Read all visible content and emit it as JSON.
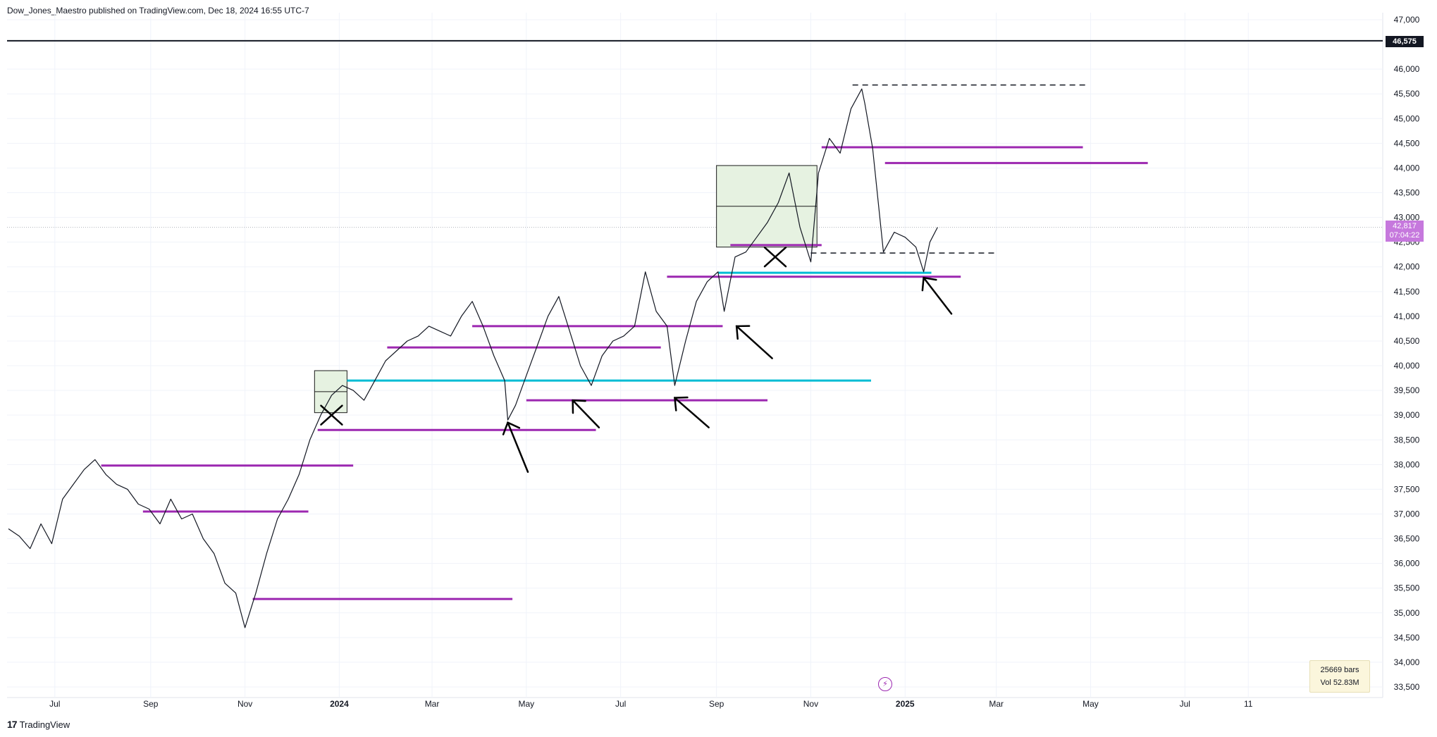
{
  "header": {
    "published_text": "Dow_Jones_Maestro published on TradingView.com, Dec 18, 2024 16:55 UTC-7"
  },
  "footer": {
    "brand": "TradingView",
    "logo_glyph": "17"
  },
  "info_box": {
    "bars": "25669 bars",
    "volume": "Vol 52.83M"
  },
  "price_tags": {
    "current_price": "42,817",
    "countdown": "07:04:22",
    "level_price": "46,575"
  },
  "colors": {
    "price_line": "#131722",
    "support_purple": "#9c27b0",
    "support_cyan": "#00bcd4",
    "zone_fill": "#e6f2e1",
    "current_tag": "#c678dd",
    "annotation": "#000000"
  },
  "chart_data": {
    "type": "line",
    "title": "",
    "xlabel": "",
    "ylabel": "",
    "ylim": [
      33500,
      47000
    ],
    "grid": true,
    "y_ticks": [
      33500,
      34000,
      34500,
      35000,
      35500,
      36000,
      36500,
      37000,
      37500,
      38000,
      38500,
      39000,
      39500,
      40000,
      40500,
      41000,
      41500,
      42000,
      42500,
      43000,
      43500,
      44000,
      44500,
      45000,
      45500,
      46000,
      47000
    ],
    "y_tick_labels": [
      "33,500",
      "34,000",
      "34,500",
      "35,000",
      "35,500",
      "36,000",
      "36,500",
      "37,000",
      "37,500",
      "38,000",
      "38,500",
      "39,000",
      "39,500",
      "40,000",
      "40,500",
      "41,000",
      "41,500",
      "42,000",
      "42,500",
      "43,000",
      "43,500",
      "44,000",
      "44,500",
      "45,000",
      "45,500",
      "46,000",
      "47,000"
    ],
    "x_ticks": [
      {
        "label": "Jul",
        "date": "2023-07-01",
        "bold": false
      },
      {
        "label": "Sep",
        "date": "2023-09-01",
        "bold": false
      },
      {
        "label": "Nov",
        "date": "2023-11-01",
        "bold": false
      },
      {
        "label": "2024",
        "date": "2024-01-01",
        "bold": true
      },
      {
        "label": "Mar",
        "date": "2024-03-01",
        "bold": false
      },
      {
        "label": "May",
        "date": "2024-05-01",
        "bold": false
      },
      {
        "label": "Jul",
        "date": "2024-07-01",
        "bold": false
      },
      {
        "label": "Sep",
        "date": "2024-09-01",
        "bold": false
      },
      {
        "label": "Nov",
        "date": "2024-11-01",
        "bold": false
      },
      {
        "label": "2025",
        "date": "2025-01-01",
        "bold": true
      },
      {
        "label": "Mar",
        "date": "2025-03-01",
        "bold": false
      },
      {
        "label": "May",
        "date": "2025-05-01",
        "bold": false
      },
      {
        "label": "Jul",
        "date": "2025-07-01",
        "bold": false
      },
      {
        "label": "11",
        "date": "2025-08-11",
        "bold": false
      }
    ],
    "series": [
      {
        "values": [
          [
            "2023-06-01",
            36700
          ],
          [
            "2023-06-08",
            36550
          ],
          [
            "2023-06-15",
            36300
          ],
          [
            "2023-06-22",
            36800
          ],
          [
            "2023-06-29",
            36400
          ],
          [
            "2023-07-06",
            37300
          ],
          [
            "2023-07-13",
            37600
          ],
          [
            "2023-07-20",
            37900
          ],
          [
            "2023-07-27",
            38100
          ],
          [
            "2023-08-03",
            37800
          ],
          [
            "2023-08-10",
            37600
          ],
          [
            "2023-08-17",
            37500
          ],
          [
            "2023-08-24",
            37200
          ],
          [
            "2023-08-31",
            37100
          ],
          [
            "2023-09-07",
            36800
          ],
          [
            "2023-09-14",
            37300
          ],
          [
            "2023-09-21",
            36900
          ],
          [
            "2023-09-28",
            37000
          ],
          [
            "2023-10-05",
            36500
          ],
          [
            "2023-10-12",
            36200
          ],
          [
            "2023-10-19",
            35600
          ],
          [
            "2023-10-26",
            35400
          ],
          [
            "2023-11-01",
            34700
          ],
          [
            "2023-11-08",
            35400
          ],
          [
            "2023-11-15",
            36200
          ],
          [
            "2023-11-22",
            36900
          ],
          [
            "2023-11-29",
            37300
          ],
          [
            "2023-12-06",
            37800
          ],
          [
            "2023-12-13",
            38500
          ],
          [
            "2023-12-20",
            39000
          ],
          [
            "2023-12-27",
            39400
          ],
          [
            "2024-01-03",
            39600
          ],
          [
            "2024-01-10",
            39500
          ],
          [
            "2024-01-17",
            39300
          ],
          [
            "2024-01-24",
            39700
          ],
          [
            "2024-01-31",
            40100
          ],
          [
            "2024-02-07",
            40300
          ],
          [
            "2024-02-14",
            40500
          ],
          [
            "2024-02-21",
            40600
          ],
          [
            "2024-02-28",
            40800
          ],
          [
            "2024-03-06",
            40700
          ],
          [
            "2024-03-13",
            40600
          ],
          [
            "2024-03-20",
            41000
          ],
          [
            "2024-03-27",
            41300
          ],
          [
            "2024-04-03",
            40800
          ],
          [
            "2024-04-10",
            40200
          ],
          [
            "2024-04-17",
            39700
          ],
          [
            "2024-04-19",
            38900
          ],
          [
            "2024-04-24",
            39200
          ],
          [
            "2024-05-01",
            39800
          ],
          [
            "2024-05-08",
            40400
          ],
          [
            "2024-05-15",
            41000
          ],
          [
            "2024-05-22",
            41400
          ],
          [
            "2024-05-29",
            40700
          ],
          [
            "2024-06-05",
            40000
          ],
          [
            "2024-06-12",
            39600
          ],
          [
            "2024-06-19",
            40200
          ],
          [
            "2024-06-26",
            40500
          ],
          [
            "2024-07-03",
            40600
          ],
          [
            "2024-07-10",
            40800
          ],
          [
            "2024-07-17",
            41900
          ],
          [
            "2024-07-24",
            41100
          ],
          [
            "2024-07-31",
            40800
          ],
          [
            "2024-08-05",
            39600
          ],
          [
            "2024-08-12",
            40500
          ],
          [
            "2024-08-19",
            41300
          ],
          [
            "2024-08-26",
            41700
          ],
          [
            "2024-09-02",
            41900
          ],
          [
            "2024-09-06",
            41100
          ],
          [
            "2024-09-13",
            42200
          ],
          [
            "2024-09-20",
            42300
          ],
          [
            "2024-09-27",
            42600
          ],
          [
            "2024-10-04",
            42900
          ],
          [
            "2024-10-11",
            43300
          ],
          [
            "2024-10-18",
            43900
          ],
          [
            "2024-10-25",
            42800
          ],
          [
            "2024-11-01",
            42100
          ],
          [
            "2024-11-06",
            43900
          ],
          [
            "2024-11-13",
            44600
          ],
          [
            "2024-11-20",
            44300
          ],
          [
            "2024-11-27",
            45200
          ],
          [
            "2024-12-04",
            45600
          ],
          [
            "2024-12-06",
            45300
          ],
          [
            "2024-12-11",
            44400
          ],
          [
            "2024-12-18",
            42300
          ],
          [
            "2024-12-25",
            42700
          ],
          [
            "2025-01-01",
            42600
          ],
          [
            "2025-01-08",
            42400
          ],
          [
            "2025-01-13",
            41900
          ],
          [
            "2025-01-17",
            42500
          ],
          [
            "2025-01-22",
            42800
          ]
        ]
      }
    ],
    "horizontal_levels": [
      {
        "price": 46575,
        "start": "2023-06-01",
        "end": "2025-10-01",
        "style": "solid",
        "color": "black"
      },
      {
        "price": 45680,
        "start": "2024-11-28",
        "end": "2025-04-30",
        "style": "dashed",
        "color": "black"
      },
      {
        "price": 44420,
        "start": "2024-11-08",
        "end": "2025-04-26",
        "style": "solid",
        "color": "purple"
      },
      {
        "price": 44100,
        "start": "2024-12-19",
        "end": "2025-06-07",
        "style": "solid",
        "color": "purple"
      },
      {
        "price": 42440,
        "start": "2024-09-10",
        "end": "2024-11-08",
        "style": "solid",
        "color": "purple"
      },
      {
        "price": 42280,
        "start": "2024-11-01",
        "end": "2025-03-01",
        "style": "dashed",
        "color": "black"
      },
      {
        "price": 41880,
        "start": "2024-09-02",
        "end": "2025-01-18",
        "style": "solid",
        "color": "cyan"
      },
      {
        "price": 41800,
        "start": "2024-07-31",
        "end": "2025-02-06",
        "style": "solid",
        "color": "purple"
      },
      {
        "price": 40800,
        "start": "2024-03-27",
        "end": "2024-09-05",
        "style": "solid",
        "color": "purple"
      },
      {
        "price": 40370,
        "start": "2024-02-01",
        "end": "2024-07-27",
        "style": "solid",
        "color": "purple"
      },
      {
        "price": 39700,
        "start": "2024-01-06",
        "end": "2024-12-10",
        "style": "solid",
        "color": "cyan"
      },
      {
        "price": 39300,
        "start": "2024-05-01",
        "end": "2024-10-04",
        "style": "solid",
        "color": "purple"
      },
      {
        "price": 38700,
        "start": "2023-12-18",
        "end": "2024-06-15",
        "style": "solid",
        "color": "purple"
      },
      {
        "price": 37980,
        "start": "2023-07-31",
        "end": "2024-01-10",
        "style": "solid",
        "color": "purple"
      },
      {
        "price": 37050,
        "start": "2023-08-27",
        "end": "2023-12-12",
        "style": "solid",
        "color": "purple"
      },
      {
        "price": 35280,
        "start": "2023-11-06",
        "end": "2024-04-22",
        "style": "solid",
        "color": "purple"
      }
    ],
    "zones": [
      {
        "start": "2023-12-16",
        "end": "2024-01-06",
        "y_low": 39050,
        "y_high": 39900
      },
      {
        "start": "2024-09-01",
        "end": "2024-11-05",
        "y_low": 42400,
        "y_high": 44050
      }
    ],
    "arrows": [
      {
        "tip": [
          "2024-04-19",
          38850
        ],
        "tail": [
          "2024-05-02",
          37850
        ]
      },
      {
        "tip": [
          "2024-05-31",
          39300
        ],
        "tail": [
          "2024-06-17",
          38750
        ]
      },
      {
        "tip": [
          "2024-08-05",
          39350
        ],
        "tail": [
          "2024-08-27",
          38750
        ]
      },
      {
        "tip": [
          "2024-09-14",
          40800
        ],
        "tail": [
          "2024-10-07",
          40150
        ]
      },
      {
        "tip": [
          "2025-01-13",
          41780
        ],
        "tail": [
          "2025-01-31",
          41050
        ]
      }
    ],
    "crosses": [
      {
        "center": [
          "2023-12-27",
          39000
        ]
      },
      {
        "center": [
          "2024-10-09",
          42200
        ]
      }
    ]
  }
}
